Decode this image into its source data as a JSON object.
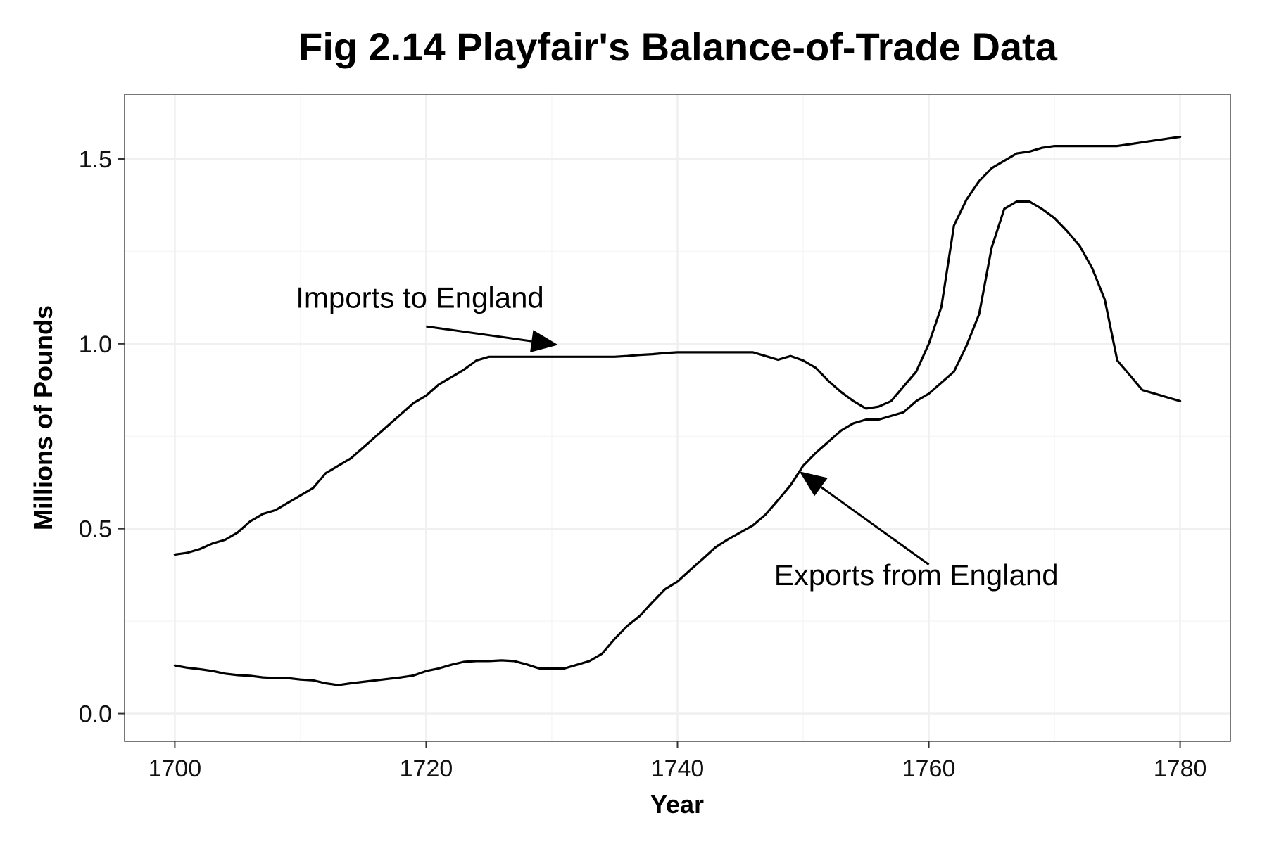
{
  "chart_data": {
    "type": "line",
    "title": "Fig 2.14 Playfair's Balance-of-Trade Data",
    "xlabel": "Year",
    "ylabel": "Millions of Pounds",
    "xlim": [
      1696,
      1784
    ],
    "ylim": [
      -0.075,
      1.675
    ],
    "x_ticks": [
      1700,
      1720,
      1740,
      1760,
      1780
    ],
    "x_minor_ticks": [
      1710,
      1730,
      1750,
      1770
    ],
    "y_ticks": [
      0.0,
      0.5,
      1.0,
      1.5
    ],
    "y_tick_labels": [
      "0.0",
      "0.5",
      "1.0",
      "1.5"
    ],
    "y_minor_ticks": [
      0.25,
      0.75,
      1.25
    ],
    "grid": true,
    "legend": "none",
    "series": [
      {
        "x": [
          1700,
          1701,
          1702,
          1703,
          1704,
          1705,
          1706,
          1707,
          1708,
          1709,
          1710,
          1711,
          1712,
          1713,
          1714,
          1715,
          1716,
          1717,
          1718,
          1719,
          1720,
          1721,
          1722,
          1723,
          1724,
          1725,
          1726,
          1727,
          1728,
          1729,
          1730,
          1731,
          1732,
          1733,
          1734,
          1735,
          1736,
          1737,
          1738,
          1739,
          1740,
          1741,
          1742,
          1743,
          1744,
          1745,
          1746,
          1747,
          1748,
          1749,
          1750,
          1751,
          1752,
          1753,
          1754,
          1755,
          1756,
          1757,
          1758,
          1759,
          1760,
          1761,
          1762,
          1763,
          1764,
          1765,
          1766,
          1767,
          1768,
          1769,
          1770,
          1771,
          1772,
          1773,
          1774,
          1775,
          1776,
          1777,
          1778,
          1779,
          1780
        ],
        "values": [
          0.43,
          0.435,
          0.445,
          0.46,
          0.47,
          0.49,
          0.52,
          0.54,
          0.55,
          0.57,
          0.59,
          0.61,
          0.65,
          0.67,
          0.69,
          0.72,
          0.75,
          0.78,
          0.81,
          0.84,
          0.86,
          0.89,
          0.91,
          0.93,
          0.955,
          0.965,
          0.965,
          0.965,
          0.965,
          0.965,
          0.965,
          0.965,
          0.965,
          0.965,
          0.965,
          0.965,
          0.967,
          0.97,
          0.972,
          0.975,
          0.977,
          0.977,
          0.977,
          0.977,
          0.977,
          0.977,
          0.977,
          0.967,
          0.957,
          0.967,
          0.955,
          0.935,
          0.9,
          0.87,
          0.845,
          0.825,
          0.83,
          0.845,
          0.885,
          0.925,
          1.0,
          1.1,
          1.32,
          1.39,
          1.44,
          1.475,
          1.495,
          1.515,
          1.52,
          1.53,
          1.535,
          1.535,
          1.535,
          1.535,
          1.535,
          1.535,
          1.54,
          1.545,
          1.55,
          1.555,
          1.56
        ]
      },
      {
        "x": [
          1700,
          1701,
          1702,
          1703,
          1704,
          1705,
          1706,
          1707,
          1708,
          1709,
          1710,
          1711,
          1712,
          1713,
          1714,
          1715,
          1716,
          1717,
          1718,
          1719,
          1720,
          1721,
          1722,
          1723,
          1724,
          1725,
          1726,
          1727,
          1728,
          1729,
          1730,
          1731,
          1732,
          1733,
          1734,
          1735,
          1736,
          1737,
          1738,
          1739,
          1740,
          1741,
          1742,
          1743,
          1744,
          1745,
          1746,
          1747,
          1748,
          1749,
          1750,
          1751,
          1752,
          1753,
          1754,
          1755,
          1756,
          1757,
          1758,
          1759,
          1760,
          1761,
          1762,
          1763,
          1764,
          1765,
          1766,
          1767,
          1768,
          1769,
          1770,
          1771,
          1772,
          1773,
          1774,
          1775,
          1776,
          1777,
          1778,
          1779,
          1780
        ],
        "values": [
          0.13,
          0.124,
          0.12,
          0.115,
          0.108,
          0.104,
          0.102,
          0.098,
          0.096,
          0.096,
          0.092,
          0.09,
          0.082,
          0.077,
          0.082,
          0.086,
          0.09,
          0.094,
          0.098,
          0.103,
          0.115,
          0.122,
          0.132,
          0.14,
          0.142,
          0.142,
          0.144,
          0.142,
          0.133,
          0.122,
          0.122,
          0.122,
          0.132,
          0.142,
          0.162,
          0.202,
          0.237,
          0.264,
          0.301,
          0.336,
          0.357,
          0.388,
          0.418,
          0.449,
          0.471,
          0.49,
          0.509,
          0.538,
          0.577,
          0.618,
          0.67,
          0.705,
          0.735,
          0.765,
          0.785,
          0.795,
          0.795,
          0.805,
          0.815,
          0.845,
          0.865,
          0.895,
          0.925,
          0.995,
          1.08,
          1.26,
          1.365,
          1.385,
          1.385,
          1.365,
          1.34,
          1.305,
          1.265,
          1.205,
          1.12,
          0.955,
          0.915,
          0.875,
          0.865,
          0.855,
          0.845
        ]
      }
    ],
    "annotations": [
      {
        "text": "Imports to England",
        "text_x": 1719.5,
        "text_y": 1.098,
        "arrow_from_x": 1720,
        "arrow_from_y": 1.047,
        "arrow_to_x": 1730.5,
        "arrow_to_y": 0.997
      },
      {
        "text": "Exports from England",
        "text_x": 1759,
        "text_y": 0.347,
        "arrow_from_x": 1760,
        "arrow_from_y": 0.403,
        "arrow_to_x": 1749.7,
        "arrow_to_y": 0.655
      }
    ]
  }
}
